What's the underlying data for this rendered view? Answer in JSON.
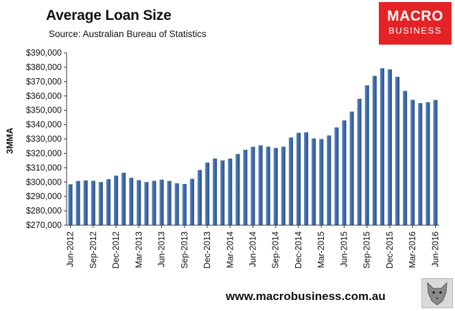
{
  "header": {
    "title": "Average Loan Size",
    "subtitle": "Source: Australian Bureau of Statistics"
  },
  "logo": {
    "line1": "MACRO",
    "line2": "BUSINESS",
    "color": "#e52326"
  },
  "footer": {
    "url": "www.macrobusiness.com.au",
    "icon": "wolf-icon"
  },
  "chart_data": {
    "type": "bar",
    "ylabel": "3MMA",
    "ylim": [
      270000,
      390000
    ],
    "yticks": [
      "$270,000",
      "$280,000",
      "$290,000",
      "$300,000",
      "$310,000",
      "$320,000",
      "$330,000",
      "$340,000",
      "$350,000",
      "$360,000",
      "$370,000",
      "$380,000",
      "$390,000"
    ],
    "xtick_labels": [
      "Jun-2012",
      "Sep-2012",
      "Dec-2012",
      "Mar-2013",
      "Jun-2013",
      "Sep-2013",
      "Dec-2013",
      "Mar-2014",
      "Jun-2014",
      "Sep-2014",
      "Dec-2014",
      "Mar-2015",
      "Jun-2015",
      "Sep-2015",
      "Dec-2015",
      "Mar-2016",
      "Jun-2016"
    ],
    "categories": [
      "Jun-2012",
      "Jul-2012",
      "Aug-2012",
      "Sep-2012",
      "Oct-2012",
      "Nov-2012",
      "Dec-2012",
      "Jan-2013",
      "Feb-2013",
      "Mar-2013",
      "Apr-2013",
      "May-2013",
      "Jun-2013",
      "Jul-2013",
      "Aug-2013",
      "Sep-2013",
      "Oct-2013",
      "Nov-2013",
      "Dec-2013",
      "Jan-2014",
      "Feb-2014",
      "Mar-2014",
      "Apr-2014",
      "May-2014",
      "Jun-2014",
      "Jul-2014",
      "Aug-2014",
      "Sep-2014",
      "Oct-2014",
      "Nov-2014",
      "Dec-2014",
      "Jan-2015",
      "Feb-2015",
      "Mar-2015",
      "Apr-2015",
      "May-2015",
      "Jun-2015",
      "Jul-2015",
      "Aug-2015",
      "Sep-2015",
      "Oct-2015",
      "Nov-2015",
      "Dec-2015",
      "Jan-2016",
      "Feb-2016",
      "Mar-2016",
      "Apr-2016",
      "May-2016",
      "Jun-2016"
    ],
    "values": [
      298500,
      300800,
      301200,
      300900,
      300000,
      302000,
      304500,
      306500,
      303000,
      301300,
      300000,
      300900,
      301700,
      300800,
      299200,
      298700,
      302300,
      308400,
      313600,
      316400,
      315100,
      316400,
      319600,
      322500,
      324600,
      325600,
      324700,
      323800,
      324700,
      331000,
      334300,
      334700,
      330400,
      330000,
      332500,
      338100,
      343000,
      349100,
      358000,
      367400,
      374000,
      379300,
      378500,
      373300,
      363500,
      357300,
      355000,
      355600,
      357200
    ],
    "bar_color": "#3d6aa8",
    "grid": false,
    "legend": "none"
  }
}
